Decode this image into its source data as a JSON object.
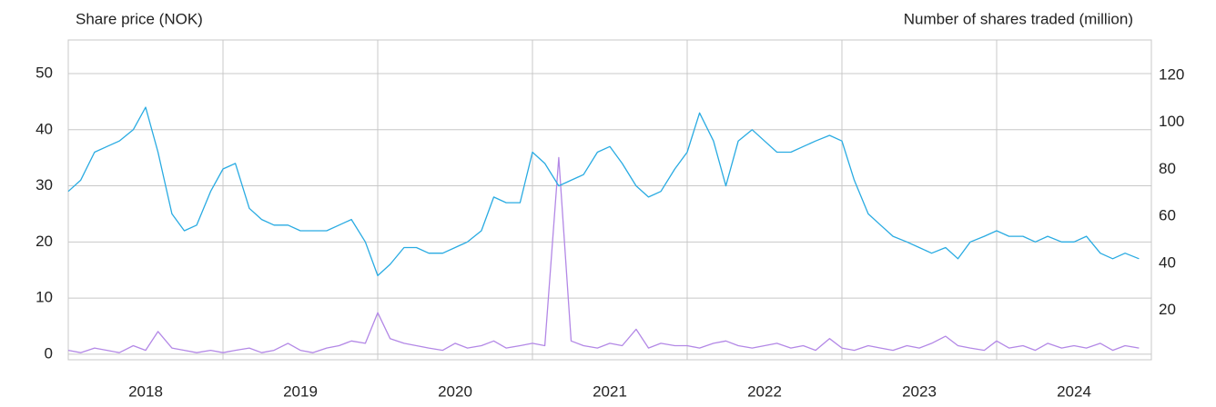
{
  "chart_data": {
    "type": "line",
    "ylabel": "Share price (NOK)",
    "y2label": "Number of shares traded (million)",
    "categories": [
      "2018",
      "2019",
      "2020",
      "2021",
      "2022",
      "2023",
      "2024"
    ],
    "x": [
      2018.0,
      2018.08,
      2018.17,
      2018.25,
      2018.33,
      2018.42,
      2018.5,
      2018.58,
      2018.67,
      2018.75,
      2018.83,
      2018.92,
      2019.0,
      2019.08,
      2019.17,
      2019.25,
      2019.33,
      2019.42,
      2019.5,
      2019.58,
      2019.67,
      2019.75,
      2019.83,
      2019.92,
      2020.0,
      2020.08,
      2020.17,
      2020.25,
      2020.33,
      2020.42,
      2020.5,
      2020.58,
      2020.67,
      2020.75,
      2020.83,
      2020.92,
      2021.0,
      2021.08,
      2021.17,
      2021.25,
      2021.33,
      2021.42,
      2021.5,
      2021.58,
      2021.67,
      2021.75,
      2021.83,
      2021.92,
      2022.0,
      2022.08,
      2022.17,
      2022.25,
      2022.33,
      2022.42,
      2022.5,
      2022.58,
      2022.67,
      2022.75,
      2022.83,
      2022.92,
      2023.0,
      2023.08,
      2023.17,
      2023.25,
      2023.33,
      2023.42,
      2023.5,
      2023.58,
      2023.67,
      2023.75,
      2023.83,
      2023.92,
      2024.0,
      2024.08,
      2024.17,
      2024.25,
      2024.33,
      2024.42,
      2024.5,
      2024.58,
      2024.67,
      2024.75,
      2024.83,
      2024.92
    ],
    "series": [
      {
        "name": "Share price",
        "color": "#29abe2",
        "values": [
          29,
          31,
          36,
          37,
          38,
          40,
          44,
          36,
          25,
          22,
          23,
          29,
          33,
          34,
          26,
          24,
          23,
          23,
          22,
          22,
          22,
          23,
          24,
          20,
          14,
          16,
          19,
          19,
          18,
          18,
          19,
          20,
          22,
          28,
          27,
          27,
          36,
          34,
          30,
          31,
          32,
          36,
          37,
          34,
          30,
          28,
          29,
          33,
          36,
          43,
          38,
          30,
          38,
          40,
          38,
          36,
          36,
          37,
          38,
          39,
          38,
          31,
          25,
          23,
          21,
          20,
          19,
          18,
          19,
          17,
          20,
          21,
          22,
          21,
          21,
          20,
          21,
          20,
          20,
          21,
          18,
          17,
          18,
          17
        ]
      },
      {
        "name": "Shares traded",
        "color": "#b388e6",
        "axis": "y2",
        "values": [
          3,
          2,
          4,
          3,
          2,
          5,
          3,
          11,
          4,
          3,
          2,
          3,
          2,
          3,
          4,
          2,
          3,
          6,
          3,
          2,
          4,
          5,
          7,
          6,
          19,
          8,
          6,
          5,
          4,
          3,
          6,
          4,
          5,
          7,
          4,
          5,
          6,
          5,
          85,
          7,
          5,
          4,
          6,
          5,
          12,
          4,
          6,
          5,
          5,
          4,
          6,
          7,
          5,
          4,
          5,
          6,
          4,
          5,
          3,
          8,
          4,
          3,
          5,
          4,
          3,
          5,
          4,
          6,
          9,
          5,
          4,
          3,
          7,
          4,
          5,
          3,
          6,
          4,
          5,
          4,
          6,
          3,
          5,
          4
        ]
      }
    ],
    "xlim": [
      2018,
      2025
    ],
    "xticks": [
      2019,
      2020,
      2021,
      2022,
      2023,
      2024
    ],
    "ylim": [
      -1,
      56
    ],
    "yticks": [
      0,
      10,
      20,
      30,
      40,
      50
    ],
    "y2lim": [
      -1,
      135
    ],
    "y2ticks": [
      20,
      40,
      60,
      80,
      100,
      120
    ],
    "grid": true
  }
}
